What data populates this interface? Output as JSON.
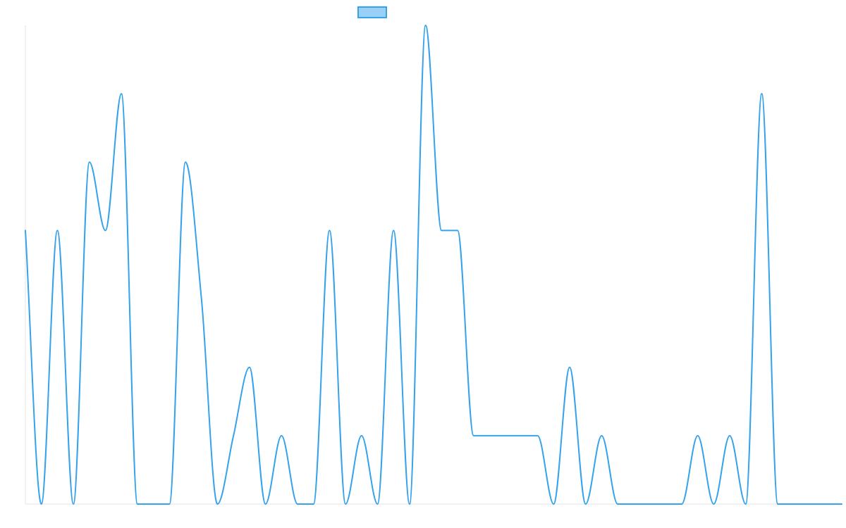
{
  "colors": {
    "series_line": "#36a2eb",
    "series_fill": "#9ad0f5",
    "axis": "#e3e3e3"
  },
  "chart_data": {
    "type": "line",
    "title": "",
    "xlabel": "",
    "ylabel": "",
    "legend": {
      "position": "top-center",
      "label": ""
    },
    "grid": false,
    "ylim": [
      0,
      7
    ],
    "x": [
      0,
      1,
      2,
      3,
      4,
      5,
      6,
      7,
      8,
      9,
      10,
      11,
      12,
      13,
      14,
      15,
      16,
      17,
      18,
      19,
      20,
      21,
      22,
      23,
      24,
      25,
      26,
      27,
      28,
      29,
      30,
      31,
      32,
      33,
      34,
      35,
      36,
      37,
      38,
      39,
      40,
      41,
      42,
      43,
      44,
      45,
      46,
      47,
      48,
      49,
      50,
      51
    ],
    "series": [
      {
        "name": "",
        "values": [
          4,
          0,
          4,
          0,
          5,
          4,
          6,
          0,
          0,
          0,
          5,
          3,
          0,
          1,
          2,
          0,
          1,
          0,
          0,
          4,
          0,
          1,
          0,
          4,
          0,
          7,
          4,
          4,
          1,
          1,
          1,
          1,
          1,
          0,
          2,
          0,
          1,
          0,
          0,
          0,
          0,
          0,
          1,
          0,
          1,
          0,
          6,
          0,
          0,
          0,
          0,
          0
        ]
      }
    ]
  }
}
